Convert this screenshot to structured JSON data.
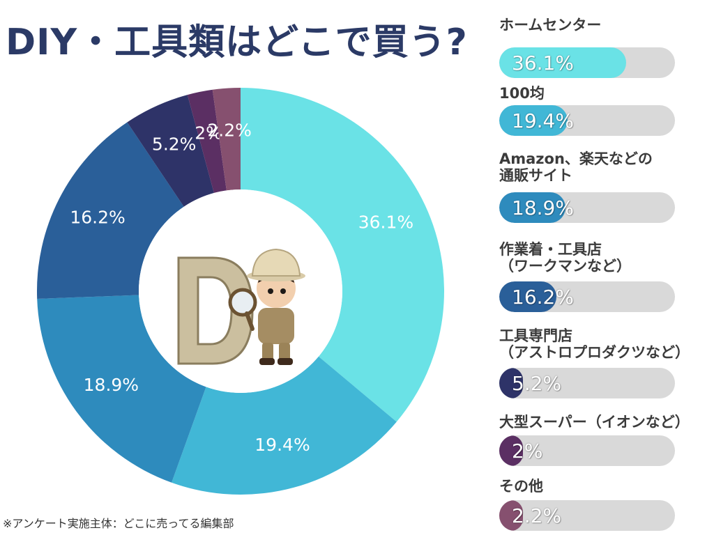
{
  "title": "DIY・工具類はどこで買う?",
  "footnote": "※アンケート実施主体：どこに売ってる編集部",
  "colors": {
    "title": "#2b3a66",
    "track": "#d9d9d9"
  },
  "chart_data": {
    "type": "pie",
    "title": "DIY・工具類はどこで買う?",
    "donut": true,
    "categories": [
      "ホームセンター",
      "100均",
      "Amazon、楽天などの\n通販サイト",
      "作業着・工具店\n（ワークマンなど）",
      "工具専門店\n（アストロプロダクツなど）",
      "大型スーパー（イオンなど）",
      "その他"
    ],
    "values": [
      36.1,
      19.4,
      18.9,
      16.2,
      5.2,
      2,
      2.2
    ],
    "labels": [
      "36.1%",
      "19.4%",
      "18.9%",
      "16.2%",
      "5.2%",
      "2%",
      "2.2%"
    ],
    "colors": [
      "#6ae2e6",
      "#41b7d6",
      "#2e8bbd",
      "#2a5f99",
      "#2e3368",
      "#5b2f63",
      "#86506f"
    ]
  }
}
